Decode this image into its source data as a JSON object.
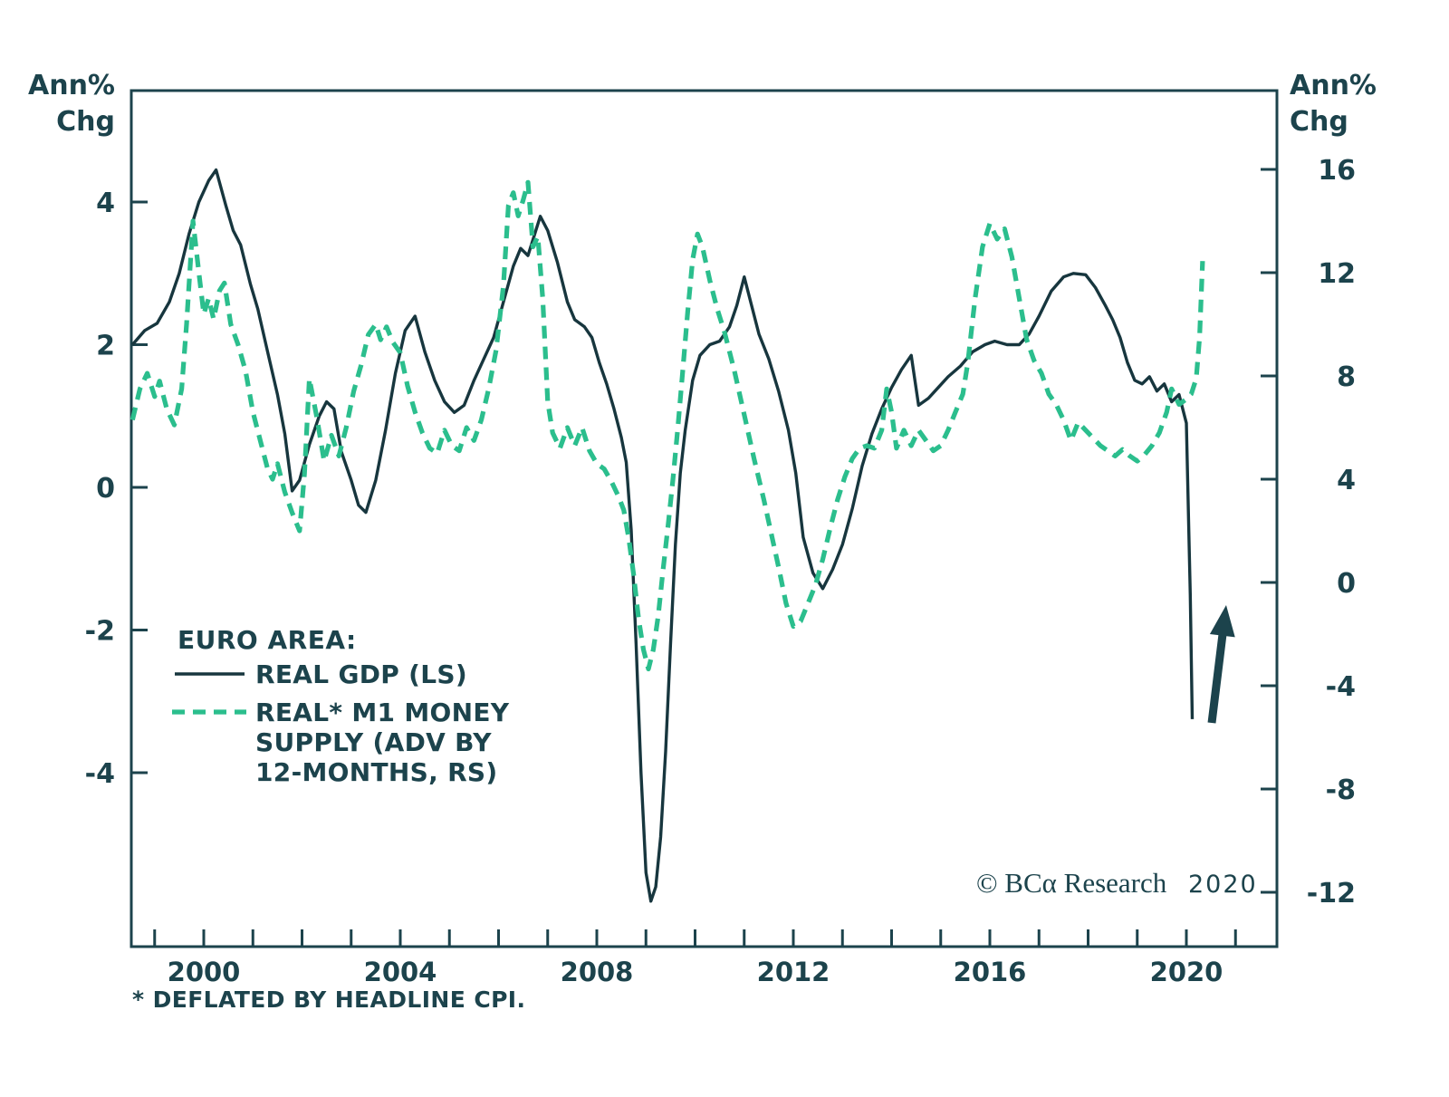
{
  "axis_titles": {
    "left_line1": "Ann%",
    "left_line2": "Chg",
    "right_line1": "Ann%",
    "right_line2": "Chg"
  },
  "legend": {
    "title": "EURO AREA:",
    "gdp_label": "REAL GDP (LS)",
    "m1_label_line1": "REAL* M1 MONEY",
    "m1_label_line2": "SUPPLY (ADV BY",
    "m1_label_line3": "12-MONTHS, RS)"
  },
  "footnote": "* DEFLATED BY HEADLINE CPI.",
  "copyright": {
    "text": "© BCα Research",
    "year": "2020"
  },
  "colors": {
    "dark_text": "#1c434c",
    "gdp_line": "#17363e",
    "m1_line": "#2bbe8d",
    "background": "#ffffff"
  },
  "chart_data": {
    "type": "line",
    "title": "",
    "x_axis": {
      "range_years": [
        1998.5,
        2022.0
      ],
      "minor_tick_step": 1,
      "labeled_years": [
        2000,
        2004,
        2008,
        2012,
        2016,
        2020
      ],
      "first_tick_year": 1999,
      "last_tick_year": 2021
    },
    "left_axis": {
      "label": "Ann% Chg",
      "ticks": [
        4,
        2,
        0,
        -2,
        -4
      ],
      "implied_range": [
        -6.3,
        5.5
      ]
    },
    "right_axis": {
      "label": "Ann% Chg",
      "ticks": [
        16,
        12,
        8,
        4,
        0,
        -4,
        -8,
        -12
      ],
      "implied_range": [
        -14,
        19
      ]
    },
    "grid": false,
    "legend_position": "middle-left",
    "annotations": [
      {
        "type": "up-arrow",
        "near_year": 2020.6,
        "meaning": "rebound expected from GDP collapse"
      }
    ],
    "series": [
      {
        "name": "REAL GDP (LS)",
        "axis": "left",
        "style": "solid",
        "points": [
          [
            1998.55,
            2.0
          ],
          [
            1998.8,
            2.2
          ],
          [
            1999.05,
            2.3
          ],
          [
            1999.3,
            2.6
          ],
          [
            1999.5,
            3.0
          ],
          [
            1999.7,
            3.55
          ],
          [
            1999.9,
            4.0
          ],
          [
            2000.1,
            4.3
          ],
          [
            2000.25,
            4.45
          ],
          [
            2000.45,
            3.95
          ],
          [
            2000.6,
            3.6
          ],
          [
            2000.75,
            3.4
          ],
          [
            2000.95,
            2.85
          ],
          [
            2001.1,
            2.5
          ],
          [
            2001.3,
            1.9
          ],
          [
            2001.5,
            1.3
          ],
          [
            2001.65,
            0.75
          ],
          [
            2001.8,
            -0.05
          ],
          [
            2001.95,
            0.1
          ],
          [
            2002.15,
            0.6
          ],
          [
            2002.35,
            1.0
          ],
          [
            2002.5,
            1.2
          ],
          [
            2002.65,
            1.1
          ],
          [
            2002.8,
            0.5
          ],
          [
            2003.0,
            0.1
          ],
          [
            2003.15,
            -0.25
          ],
          [
            2003.3,
            -0.35
          ],
          [
            2003.5,
            0.1
          ],
          [
            2003.7,
            0.8
          ],
          [
            2003.9,
            1.6
          ],
          [
            2004.1,
            2.2
          ],
          [
            2004.3,
            2.4
          ],
          [
            2004.5,
            1.9
          ],
          [
            2004.7,
            1.5
          ],
          [
            2004.9,
            1.2
          ],
          [
            2005.1,
            1.05
          ],
          [
            2005.3,
            1.15
          ],
          [
            2005.5,
            1.5
          ],
          [
            2005.7,
            1.8
          ],
          [
            2005.9,
            2.1
          ],
          [
            2006.1,
            2.6
          ],
          [
            2006.3,
            3.1
          ],
          [
            2006.45,
            3.35
          ],
          [
            2006.6,
            3.25
          ],
          [
            2006.85,
            3.8
          ],
          [
            2007.0,
            3.6
          ],
          [
            2007.2,
            3.15
          ],
          [
            2007.4,
            2.6
          ],
          [
            2007.55,
            2.35
          ],
          [
            2007.75,
            2.25
          ],
          [
            2007.9,
            2.1
          ],
          [
            2008.05,
            1.75
          ],
          [
            2008.2,
            1.45
          ],
          [
            2008.35,
            1.1
          ],
          [
            2008.5,
            0.7
          ],
          [
            2008.6,
            0.35
          ],
          [
            2008.7,
            -0.6
          ],
          [
            2008.8,
            -2.2
          ],
          [
            2008.9,
            -4.0
          ],
          [
            2009.0,
            -5.4
          ],
          [
            2009.1,
            -5.8
          ],
          [
            2009.2,
            -5.6
          ],
          [
            2009.3,
            -4.9
          ],
          [
            2009.4,
            -3.7
          ],
          [
            2009.5,
            -2.2
          ],
          [
            2009.6,
            -0.8
          ],
          [
            2009.7,
            0.2
          ],
          [
            2009.8,
            0.8
          ],
          [
            2009.95,
            1.5
          ],
          [
            2010.1,
            1.85
          ],
          [
            2010.3,
            2.0
          ],
          [
            2010.5,
            2.05
          ],
          [
            2010.7,
            2.25
          ],
          [
            2010.85,
            2.55
          ],
          [
            2011.0,
            2.95
          ],
          [
            2011.15,
            2.55
          ],
          [
            2011.3,
            2.15
          ],
          [
            2011.5,
            1.8
          ],
          [
            2011.7,
            1.35
          ],
          [
            2011.9,
            0.8
          ],
          [
            2012.05,
            0.2
          ],
          [
            2012.2,
            -0.7
          ],
          [
            2012.4,
            -1.2
          ],
          [
            2012.6,
            -1.42
          ],
          [
            2012.8,
            -1.15
          ],
          [
            2013.0,
            -0.8
          ],
          [
            2013.2,
            -0.3
          ],
          [
            2013.4,
            0.3
          ],
          [
            2013.6,
            0.75
          ],
          [
            2013.8,
            1.1
          ],
          [
            2014.0,
            1.4
          ],
          [
            2014.2,
            1.65
          ],
          [
            2014.4,
            1.85
          ],
          [
            2014.55,
            1.15
          ],
          [
            2014.75,
            1.25
          ],
          [
            2014.95,
            1.4
          ],
          [
            2015.15,
            1.55
          ],
          [
            2015.4,
            1.7
          ],
          [
            2015.65,
            1.9
          ],
          [
            2015.9,
            2.0
          ],
          [
            2016.1,
            2.05
          ],
          [
            2016.35,
            2.0
          ],
          [
            2016.6,
            2.0
          ],
          [
            2016.8,
            2.15
          ],
          [
            2017.0,
            2.4
          ],
          [
            2017.25,
            2.75
          ],
          [
            2017.5,
            2.95
          ],
          [
            2017.7,
            3.0
          ],
          [
            2017.95,
            2.98
          ],
          [
            2018.15,
            2.8
          ],
          [
            2018.35,
            2.55
          ],
          [
            2018.5,
            2.35
          ],
          [
            2018.65,
            2.1
          ],
          [
            2018.8,
            1.75
          ],
          [
            2018.95,
            1.5
          ],
          [
            2019.1,
            1.45
          ],
          [
            2019.25,
            1.55
          ],
          [
            2019.4,
            1.35
          ],
          [
            2019.55,
            1.45
          ],
          [
            2019.7,
            1.2
          ],
          [
            2019.85,
            1.3
          ],
          [
            2020.0,
            0.9
          ],
          [
            2020.08,
            -1.5
          ],
          [
            2020.12,
            -3.25
          ]
        ]
      },
      {
        "name": "REAL* M1 MONEY SUPPLY (ADV BY 12-MONTHS, RS)",
        "axis": "right",
        "style": "dashed",
        "points": [
          [
            1998.55,
            6.3
          ],
          [
            1998.7,
            7.5
          ],
          [
            1998.85,
            8.1
          ],
          [
            1999.0,
            7.2
          ],
          [
            1999.1,
            7.8
          ],
          [
            1999.25,
            6.7
          ],
          [
            1999.4,
            6.1
          ],
          [
            1999.55,
            7.5
          ],
          [
            1999.65,
            10.0
          ],
          [
            1999.78,
            14.0
          ],
          [
            1999.9,
            12.0
          ],
          [
            2000.0,
            10.4
          ],
          [
            2000.1,
            11.0
          ],
          [
            2000.2,
            10.2
          ],
          [
            2000.32,
            11.3
          ],
          [
            2000.42,
            11.6
          ],
          [
            2000.55,
            10.0
          ],
          [
            2000.7,
            9.2
          ],
          [
            2000.85,
            8.2
          ],
          [
            2001.0,
            6.6
          ],
          [
            2001.15,
            5.5
          ],
          [
            2001.3,
            4.4
          ],
          [
            2001.4,
            4.0
          ],
          [
            2001.5,
            4.6
          ],
          [
            2001.65,
            3.5
          ],
          [
            2001.8,
            2.7
          ],
          [
            2001.95,
            2.0
          ],
          [
            2002.05,
            4.2
          ],
          [
            2002.15,
            7.9
          ],
          [
            2002.3,
            6.4
          ],
          [
            2002.45,
            4.7
          ],
          [
            2002.6,
            5.7
          ],
          [
            2002.75,
            4.9
          ],
          [
            2002.9,
            6.0
          ],
          [
            2003.05,
            7.4
          ],
          [
            2003.2,
            8.4
          ],
          [
            2003.35,
            9.6
          ],
          [
            2003.5,
            10.0
          ],
          [
            2003.6,
            9.4
          ],
          [
            2003.72,
            9.9
          ],
          [
            2003.85,
            9.3
          ],
          [
            2004.0,
            8.9
          ],
          [
            2004.15,
            7.6
          ],
          [
            2004.3,
            6.6
          ],
          [
            2004.45,
            5.8
          ],
          [
            2004.6,
            5.2
          ],
          [
            2004.75,
            5.0
          ],
          [
            2004.9,
            5.9
          ],
          [
            2005.05,
            5.3
          ],
          [
            2005.2,
            5.1
          ],
          [
            2005.35,
            6.0
          ],
          [
            2005.5,
            5.5
          ],
          [
            2005.65,
            6.3
          ],
          [
            2005.8,
            7.5
          ],
          [
            2005.95,
            9.0
          ],
          [
            2006.1,
            11.5
          ],
          [
            2006.2,
            14.6
          ],
          [
            2006.3,
            15.1
          ],
          [
            2006.4,
            14.2
          ],
          [
            2006.5,
            14.8
          ],
          [
            2006.6,
            15.5
          ],
          [
            2006.7,
            13.0
          ],
          [
            2006.8,
            13.4
          ],
          [
            2006.9,
            11.0
          ],
          [
            2007.0,
            7.0
          ],
          [
            2007.1,
            5.8
          ],
          [
            2007.25,
            5.2
          ],
          [
            2007.4,
            6.0
          ],
          [
            2007.55,
            5.3
          ],
          [
            2007.7,
            6.0
          ],
          [
            2007.85,
            5.1
          ],
          [
            2008.0,
            4.6
          ],
          [
            2008.15,
            4.4
          ],
          [
            2008.3,
            3.9
          ],
          [
            2008.45,
            3.3
          ],
          [
            2008.55,
            2.8
          ],
          [
            2008.65,
            1.7
          ],
          [
            2008.75,
            0.3
          ],
          [
            2008.85,
            -1.4
          ],
          [
            2008.95,
            -2.6
          ],
          [
            2009.05,
            -3.35
          ],
          [
            2009.15,
            -2.6
          ],
          [
            2009.25,
            -1.3
          ],
          [
            2009.35,
            0.5
          ],
          [
            2009.45,
            2.2
          ],
          [
            2009.55,
            4.0
          ],
          [
            2009.65,
            6.0
          ],
          [
            2009.75,
            8.2
          ],
          [
            2009.85,
            10.5
          ],
          [
            2009.95,
            12.5
          ],
          [
            2010.05,
            13.5
          ],
          [
            2010.15,
            13.0
          ],
          [
            2010.3,
            11.7
          ],
          [
            2010.45,
            10.6
          ],
          [
            2010.6,
            9.7
          ],
          [
            2010.8,
            8.2
          ],
          [
            2011.0,
            6.5
          ],
          [
            2011.2,
            4.8
          ],
          [
            2011.4,
            3.2
          ],
          [
            2011.55,
            1.9
          ],
          [
            2011.7,
            0.6
          ],
          [
            2011.85,
            -0.8
          ],
          [
            2012.0,
            -1.7
          ],
          [
            2012.15,
            -1.5
          ],
          [
            2012.3,
            -0.8
          ],
          [
            2012.45,
            -0.1
          ],
          [
            2012.6,
            0.9
          ],
          [
            2012.75,
            2.1
          ],
          [
            2012.9,
            3.2
          ],
          [
            2013.05,
            4.1
          ],
          [
            2013.2,
            4.8
          ],
          [
            2013.35,
            5.2
          ],
          [
            2013.5,
            5.3
          ],
          [
            2013.65,
            5.2
          ],
          [
            2013.8,
            5.9
          ],
          [
            2013.9,
            7.5
          ],
          [
            2014.0,
            6.6
          ],
          [
            2014.1,
            5.2
          ],
          [
            2014.25,
            5.9
          ],
          [
            2014.4,
            5.3
          ],
          [
            2014.55,
            5.9
          ],
          [
            2014.7,
            5.5
          ],
          [
            2014.85,
            5.1
          ],
          [
            2015.0,
            5.3
          ],
          [
            2015.15,
            5.9
          ],
          [
            2015.3,
            6.6
          ],
          [
            2015.45,
            7.3
          ],
          [
            2015.55,
            8.5
          ],
          [
            2015.7,
            11.0
          ],
          [
            2015.85,
            13.0
          ],
          [
            2016.0,
            13.9
          ],
          [
            2016.15,
            13.3
          ],
          [
            2016.3,
            13.7
          ],
          [
            2016.45,
            12.6
          ],
          [
            2016.6,
            11.0
          ],
          [
            2016.75,
            9.4
          ],
          [
            2016.9,
            8.6
          ],
          [
            2017.05,
            8.1
          ],
          [
            2017.2,
            7.3
          ],
          [
            2017.35,
            6.9
          ],
          [
            2017.5,
            6.3
          ],
          [
            2017.65,
            5.5
          ],
          [
            2017.8,
            6.2
          ],
          [
            2017.95,
            5.9
          ],
          [
            2018.1,
            5.6
          ],
          [
            2018.25,
            5.3
          ],
          [
            2018.4,
            5.1
          ],
          [
            2018.55,
            4.9
          ],
          [
            2018.7,
            5.15
          ],
          [
            2018.85,
            4.9
          ],
          [
            2019.0,
            4.7
          ],
          [
            2019.15,
            4.95
          ],
          [
            2019.3,
            5.3
          ],
          [
            2019.45,
            5.8
          ],
          [
            2019.6,
            6.6
          ],
          [
            2019.7,
            7.5
          ],
          [
            2019.85,
            6.9
          ],
          [
            2020.0,
            7.1
          ],
          [
            2020.1,
            7.3
          ],
          [
            2020.2,
            7.9
          ],
          [
            2020.27,
            9.5
          ],
          [
            2020.33,
            12.45
          ]
        ]
      }
    ]
  }
}
